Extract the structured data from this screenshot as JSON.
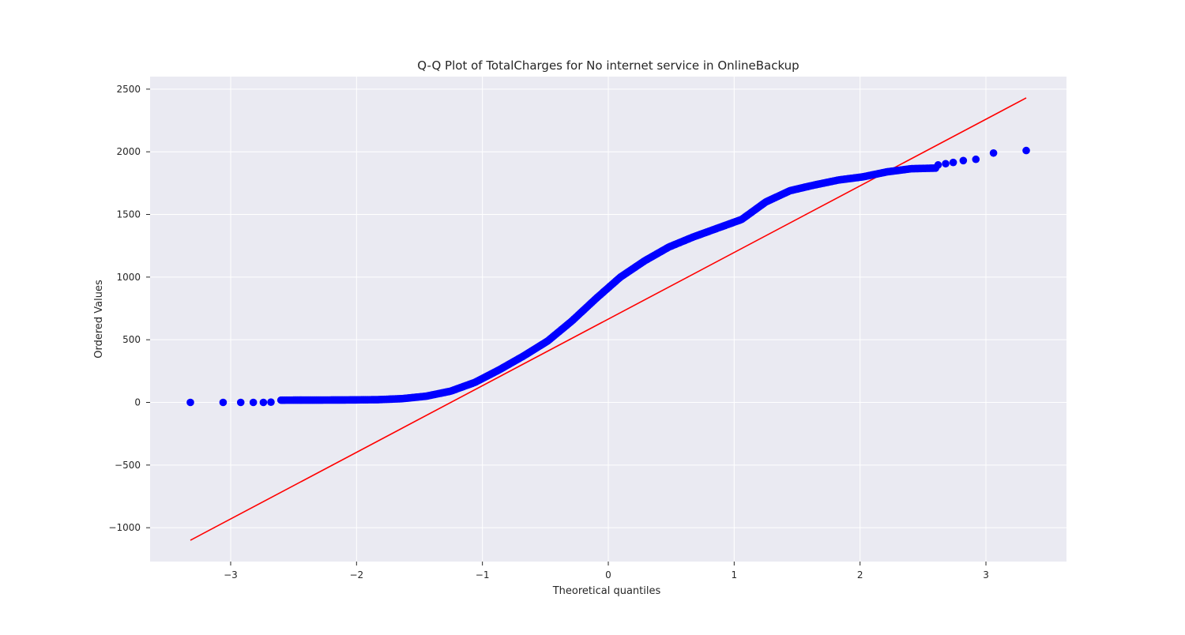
{
  "chart_data": {
    "type": "scatter",
    "title": "Q-Q Plot of TotalCharges for No internet service in OnlineBackup",
    "xlabel": "Theoretical quantiles",
    "ylabel": "Ordered Values",
    "xlim": [
      -3.64,
      3.64
    ],
    "ylim": [
      -1270,
      2600
    ],
    "xticks": [
      -3,
      -2,
      -1,
      0,
      1,
      2,
      3
    ],
    "xtick_labels": [
      "−3",
      "−2",
      "−1",
      "0",
      "1",
      "2",
      "3"
    ],
    "yticks": [
      -1000,
      -500,
      0,
      500,
      1000,
      1500,
      2000,
      2500
    ],
    "ytick_labels": [
      "−1000",
      "−500",
      "0",
      "500",
      "1000",
      "1500",
      "2000",
      "2500"
    ],
    "grid": true,
    "background": "#eaeaf2",
    "grid_color": "#ffffff",
    "point_color": "#0000ff",
    "line_color": "#ff0000",
    "fit_line": {
      "x": [
        -3.32,
        3.32
      ],
      "y": [
        -1100,
        2430
      ]
    },
    "curve": {
      "x_range": [
        -2.6,
        2.6
      ],
      "y_values": [
        18,
        18.5,
        19,
        20,
        22,
        30,
        50,
        90,
        160,
        260,
        370,
        490,
        650,
        830,
        1000,
        1130,
        1240,
        1320,
        1390,
        1460,
        1600,
        1690,
        1735,
        1775,
        1800,
        1840,
        1865,
        1870
      ]
    },
    "tail_points": [
      {
        "x": -3.32,
        "y": 0
      },
      {
        "x": -3.06,
        "y": 0
      },
      {
        "x": -2.92,
        "y": 0
      },
      {
        "x": -2.82,
        "y": 0
      },
      {
        "x": -2.74,
        "y": 0
      },
      {
        "x": -2.68,
        "y": 2
      },
      {
        "x": 2.62,
        "y": 1895
      },
      {
        "x": 2.68,
        "y": 1905
      },
      {
        "x": 2.74,
        "y": 1915
      },
      {
        "x": 2.82,
        "y": 1930
      },
      {
        "x": 2.92,
        "y": 1940
      },
      {
        "x": 3.06,
        "y": 1990
      },
      {
        "x": 3.32,
        "y": 2010
      }
    ]
  }
}
